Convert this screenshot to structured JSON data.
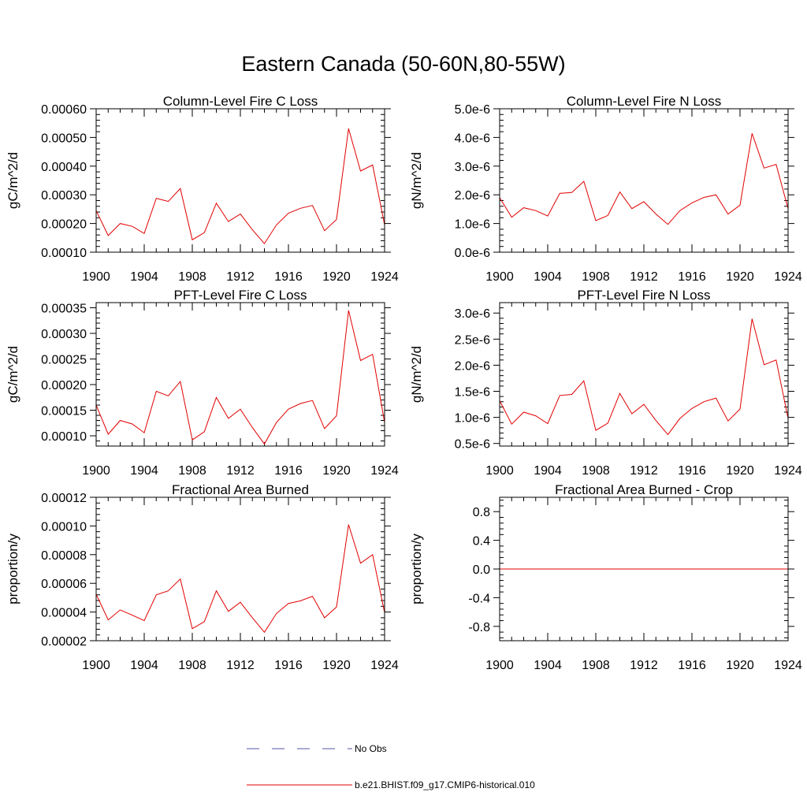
{
  "figure": {
    "title": "Eastern Canada (50-60N,80-55W)",
    "legend": [
      {
        "label": "No Obs",
        "color": "#5555aa",
        "dash": true
      },
      {
        "label": "b.e21.BHIST.f09_g17.CMIP6-historical.010",
        "color": "#e00000",
        "dash": false
      }
    ]
  },
  "chart_data": [
    {
      "type": "line",
      "title": "Column-Level Fire C Loss",
      "ylabel": "gC/m^2/d",
      "xlim": [
        1900,
        1924
      ],
      "ylim": [
        0.0001,
        0.0006
      ],
      "xticks": [
        1900,
        1904,
        1908,
        1912,
        1916,
        1920,
        1924
      ],
      "yticks": [
        0.0001,
        0.0002,
        0.0003,
        0.0004,
        0.0005,
        0.0006
      ],
      "yticklabels": [
        "0.00010",
        "0.00020",
        "0.00030",
        "0.00040",
        "0.00050",
        "0.00060"
      ],
      "series": [
        {
          "color": "#e00000",
          "x": [
            1900,
            1901,
            1902,
            1903,
            1904,
            1905,
            1906,
            1907,
            1908,
            1909,
            1910,
            1911,
            1912,
            1913,
            1914,
            1915,
            1916,
            1917,
            1918,
            1919,
            1920,
            1921,
            1922,
            1923,
            1924
          ],
          "values": [
            0.000245,
            0.000158,
            0.0002,
            0.00019,
            0.000165,
            0.000288,
            0.000277,
            0.000322,
            0.000143,
            0.000168,
            0.000271,
            0.000207,
            0.000233,
            0.000178,
            0.00013,
            0.000195,
            0.000236,
            0.000253,
            0.000263,
            0.000175,
            0.000214,
            0.000531,
            0.000383,
            0.000404,
            0.000195
          ]
        }
      ]
    },
    {
      "type": "line",
      "title": "Column-Level Fire N Loss",
      "ylabel": "gN/m^2/d",
      "xlim": [
        1900,
        1924
      ],
      "ylim": [
        0.0,
        5e-06
      ],
      "xticks": [
        1900,
        1904,
        1908,
        1912,
        1916,
        1920,
        1924
      ],
      "yticks": [
        0.0,
        1e-06,
        2e-06,
        3e-06,
        4e-06,
        5e-06
      ],
      "yticklabels": [
        "0.0e-6",
        "1.0e-6",
        "2.0e-6",
        "3.0e-6",
        "4.0e-6",
        "5.0e-6"
      ],
      "series": [
        {
          "color": "#e00000",
          "x": [
            1900,
            1901,
            1902,
            1903,
            1904,
            1905,
            1906,
            1907,
            1908,
            1909,
            1910,
            1911,
            1912,
            1913,
            1914,
            1915,
            1916,
            1917,
            1918,
            1919,
            1920,
            1921,
            1922,
            1923,
            1924
          ],
          "values": [
            1.9e-06,
            1.22e-06,
            1.55e-06,
            1.45e-06,
            1.26e-06,
            2.05e-06,
            2.08e-06,
            2.47e-06,
            1.1e-06,
            1.28e-06,
            2.1e-06,
            1.52e-06,
            1.76e-06,
            1.33e-06,
            9.7e-07,
            1.45e-06,
            1.72e-06,
            1.91e-06,
            2e-06,
            1.33e-06,
            1.64e-06,
            4.14e-06,
            2.93e-06,
            3.06e-06,
            1.52e-06
          ]
        }
      ]
    },
    {
      "type": "line",
      "title": "PFT-Level Fire C Loss",
      "ylabel": "gC/m^2/d",
      "xlim": [
        1900,
        1924
      ],
      "ylim": [
        8e-05,
        0.00036
      ],
      "xticks": [
        1900,
        1904,
        1908,
        1912,
        1916,
        1920,
        1924
      ],
      "yticks": [
        0.0001,
        0.00015,
        0.0002,
        0.00025,
        0.0003,
        0.00035
      ],
      "yticklabels": [
        "0.00010",
        "0.00015",
        "0.00020",
        "0.00025",
        "0.00030",
        "0.00035"
      ],
      "series": [
        {
          "color": "#e00000",
          "x": [
            1900,
            1901,
            1902,
            1903,
            1904,
            1905,
            1906,
            1907,
            1908,
            1909,
            1910,
            1911,
            1912,
            1913,
            1914,
            1915,
            1916,
            1917,
            1918,
            1919,
            1920,
            1921,
            1922,
            1923,
            1924
          ],
          "values": [
            0.00016,
            0.000103,
            0.00013,
            0.000123,
            0.000106,
            0.000187,
            0.000178,
            0.000206,
            9.2e-05,
            0.000108,
            0.000175,
            0.000134,
            0.000152,
            0.000116,
            8.4e-05,
            0.000126,
            0.000152,
            0.000163,
            0.000169,
            0.000114,
            0.000139,
            0.000345,
            0.000247,
            0.000259,
            0.000126
          ]
        }
      ]
    },
    {
      "type": "line",
      "title": "PFT-Level Fire N Loss",
      "ylabel": "gN/m^2/d",
      "xlim": [
        1900,
        1924
      ],
      "ylim": [
        4.5e-07,
        3.2e-06
      ],
      "xticks": [
        1900,
        1904,
        1908,
        1912,
        1916,
        1920,
        1924
      ],
      "yticks": [
        5e-07,
        1e-06,
        1.5e-06,
        2e-06,
        2.5e-06,
        3e-06
      ],
      "yticklabels": [
        "0.5e-6",
        "1.0e-6",
        "1.5e-6",
        "2.0e-6",
        "2.5e-6",
        "3.0e-6"
      ],
      "series": [
        {
          "color": "#e00000",
          "x": [
            1900,
            1901,
            1902,
            1903,
            1904,
            1905,
            1906,
            1907,
            1908,
            1909,
            1910,
            1911,
            1912,
            1913,
            1914,
            1915,
            1916,
            1917,
            1918,
            1919,
            1920,
            1921,
            1922,
            1923,
            1924
          ],
          "values": [
            1.32e-06,
            8.7e-07,
            1.1e-06,
            1.03e-06,
            8.8e-07,
            1.42e-06,
            1.44e-06,
            1.7e-06,
            7.5e-07,
            8.9e-07,
            1.46e-06,
            1.07e-06,
            1.25e-06,
            9.4e-07,
            6.7e-07,
            9.8e-07,
            1.17e-06,
            1.3e-06,
            1.37e-06,
            9.3e-07,
            1.16e-06,
            2.89e-06,
            2.01e-06,
            2.1e-06,
            9.8e-07
          ]
        }
      ]
    },
    {
      "type": "line",
      "title": "Fractional Area Burned",
      "ylabel": "proportion/y",
      "xlim": [
        1900,
        1924
      ],
      "ylim": [
        2e-05,
        0.00012
      ],
      "xticks": [
        1900,
        1904,
        1908,
        1912,
        1916,
        1920,
        1924
      ],
      "yticks": [
        2e-05,
        4e-05,
        6e-05,
        8e-05,
        0.0001,
        0.00012
      ],
      "yticklabels": [
        "0.00002",
        "0.00004",
        "0.00006",
        "0.00008",
        "0.00010",
        "0.00012"
      ],
      "series": [
        {
          "color": "#e00000",
          "x": [
            1900,
            1901,
            1902,
            1903,
            1904,
            1905,
            1906,
            1907,
            1908,
            1909,
            1910,
            1911,
            1912,
            1913,
            1914,
            1915,
            1916,
            1917,
            1918,
            1919,
            1920,
            1921,
            1922,
            1923,
            1924
          ],
          "values": [
            5.25e-05,
            3.45e-05,
            4.15e-05,
            3.78e-05,
            3.4e-05,
            5.2e-05,
            5.48e-05,
            6.3e-05,
            2.84e-05,
            3.33e-05,
            5.48e-05,
            4.05e-05,
            4.68e-05,
            3.6e-05,
            2.59e-05,
            3.9e-05,
            4.6e-05,
            4.78e-05,
            5.1e-05,
            3.6e-05,
            4.35e-05,
            0.000101,
            7.4e-05,
            8e-05,
            3.95e-05
          ]
        }
      ]
    },
    {
      "type": "line",
      "title": "Fractional Area Burned - Crop",
      "ylabel": "proportion/y",
      "xlim": [
        1900,
        1924
      ],
      "ylim": [
        -1.0,
        1.0
      ],
      "xticks": [
        1900,
        1904,
        1908,
        1912,
        1916,
        1920,
        1924
      ],
      "yticks": [
        -0.8,
        -0.4,
        0.0,
        0.4,
        0.8
      ],
      "yticklabels": [
        "-0.8",
        "-0.4",
        "0.0",
        "0.4",
        "0.8"
      ],
      "series": [
        {
          "color": "#e00000",
          "x": [
            1900,
            1924
          ],
          "values": [
            0.0,
            0.0
          ]
        }
      ]
    }
  ]
}
